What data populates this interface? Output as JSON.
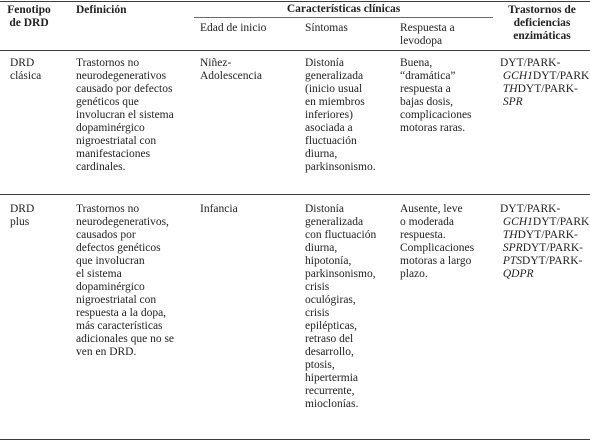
{
  "header": {
    "phenotype": "Fenotipo\nde DRD",
    "definition": "Definición",
    "clinical_group": "Características clínicas",
    "onset": "Edad de inicio",
    "symptoms": "Síntomas",
    "levodopa": "Respuesta a\nlevodopa",
    "enzyme": "Trastornos de\ndeficiencias\nenzimáticas"
  },
  "rows": [
    {
      "phenotype": "DRD\nclásica",
      "definition": "Trastornos no\nneurodegenerativos\ncausado por defectos\ngenéticos que\ninvolucran el sistema\ndopaminérgico\nnigroestriatal con\nmanifestaciones\ncardinales.",
      "onset": "Niñez-\nAdolescencia",
      "symptoms": "Distonía\ngeneralizada\n(inicio usual\nen miembros\ninferiores)\nasociada a\nfluctuación\ndiurna,\nparkinsonismo.",
      "levodopa": "Buena,\n“dramática”\nrespuesta a\nbajas dosis,\ncomplicaciones\nmotoras raras.",
      "genes": [
        {
          "prefix": "DYT/PARK-",
          "gene": "GCH1"
        },
        {
          "prefix": "DYT/PARK-",
          "gene": "TH"
        },
        {
          "prefix": "DYT/PARK-",
          "gene": "SPR"
        }
      ]
    },
    {
      "phenotype": "DRD\nplus",
      "definition": "Trastornos no\nneurodegenerativos,\ncausados por\ndefectos genéticos\nque involucran\nel sistema\ndopaminérgico\nnigroestriatal con\nrespuesta a la dopa,\nmás características\nadicionales que no se\nven en DRD.",
      "onset": "Infancia",
      "symptoms": "Distonía\ngeneralizada\ncon fluctuación\ndiurna,\nhipotonía,\nparkinsonismo,\ncrisis\noculógiras,\ncrisis\nepilépticas,\nretraso del\ndesarrollo,\nptosis,\nhipertermia\nrecurrente,\nmioclonías.",
      "levodopa": "Ausente, leve\no moderada\nrespuesta.\nComplicaciones\nmotoras a largo\nplazo.",
      "genes": [
        {
          "prefix": "DYT/PARK-",
          "gene": "GCH1"
        },
        {
          "prefix": "DYT/PARK-",
          "gene": "TH"
        },
        {
          "prefix": "DYT/PARK-",
          "gene": "SPR"
        },
        {
          "prefix": "DYT/PARK-",
          "gene": "PTS"
        },
        {
          "prefix": "DYT/PARK-",
          "gene": "QDPR"
        }
      ]
    }
  ]
}
